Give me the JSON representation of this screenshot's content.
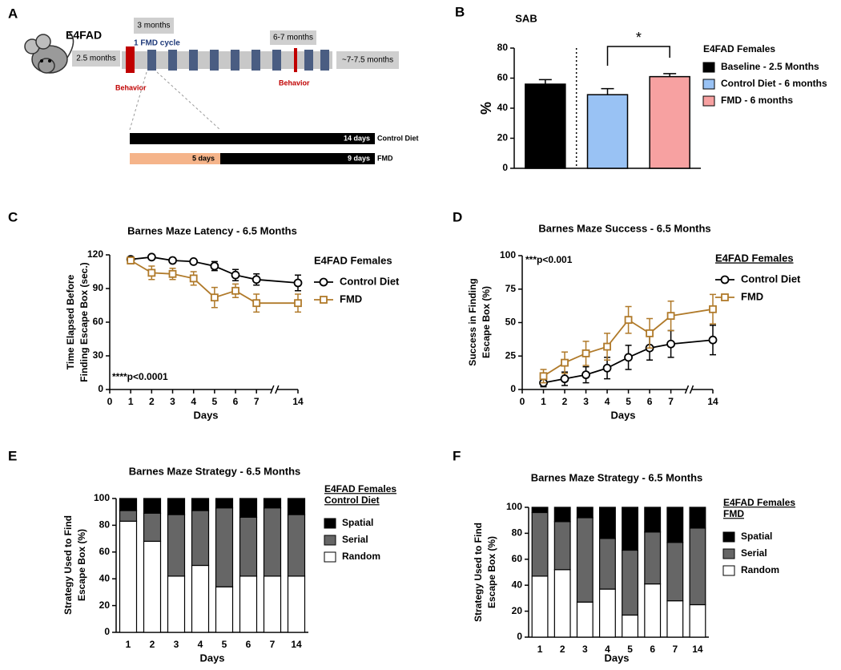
{
  "diagram": {
    "panel": "A",
    "mouse": "E4FAD",
    "start": "2.5 months",
    "interval": "3 months",
    "cycle": "1 FMD cycle",
    "later": "6-7 months",
    "end": "~7-7.5 months",
    "behavior": [
      "Behavior",
      "Behavior"
    ],
    "control_days": "14 days",
    "control_name": "Control Diet",
    "fast_days": "5 days",
    "refeed_days": "9 days",
    "fmd_name": "FMD"
  },
  "chart_data": [
    {
      "panel": "B",
      "type": "bar",
      "title": "SAB",
      "ylabel": [
        "%"
      ],
      "categories": [
        null
      ],
      "series": [
        {
          "name": "Baseline - 2.5 Months",
          "color": "#000000",
          "values": [
            56
          ],
          "errors": [
            3
          ]
        },
        {
          "name": "Control Diet - 6 months",
          "color": "#99c2f4",
          "values": [
            49
          ],
          "errors": [
            4
          ]
        },
        {
          "name": "FMD - 6 months",
          "color": "#f7a1a1",
          "values": [
            61
          ],
          "errors": [
            2
          ]
        }
      ],
      "ylim": [
        0,
        80
      ],
      "yticks": [
        0,
        20,
        40,
        60,
        80
      ],
      "legend_title": [
        "E4FAD Females"
      ],
      "annotation": "*"
    },
    {
      "panel": "C",
      "type": "line",
      "title": "Barnes Maze Latency - 6.5 Months",
      "xlabel": "Days",
      "ylabel": [
        "Time Elapsed Before",
        "Finding Escape Box (sec.)"
      ],
      "x": [
        1,
        2,
        3,
        4,
        5,
        6,
        7,
        14
      ],
      "series": [
        {
          "name": "Control Diet",
          "color": "#000000",
          "marker": "circle",
          "values": [
            116,
            118,
            115,
            114,
            110,
            102,
            98,
            95
          ],
          "errors": [
            2,
            1,
            2,
            2,
            4,
            5,
            5,
            7
          ]
        },
        {
          "name": "FMD",
          "color": "#b07a2a",
          "marker": "square",
          "values": [
            115,
            104,
            103,
            99,
            82,
            88,
            77,
            77
          ],
          "errors": [
            3,
            6,
            5,
            6,
            9,
            6,
            8,
            8
          ]
        }
      ],
      "xlim": [
        0,
        14
      ],
      "xticks": [
        0,
        1,
        2,
        3,
        4,
        5,
        6,
        7,
        14
      ],
      "xbreak": [
        7.75,
        13
      ],
      "ylim": [
        0,
        120
      ],
      "yticks": [
        0,
        30,
        60,
        90,
        120
      ],
      "legend_title": [
        "E4FAD Females"
      ],
      "annotation": "****p<0.0001"
    },
    {
      "panel": "D",
      "type": "line",
      "title": "Barnes Maze Success - 6.5 Months",
      "xlabel": "Days",
      "ylabel": [
        "Success in Finding",
        "Escape Box (%)"
      ],
      "x": [
        1,
        2,
        3,
        4,
        5,
        6,
        7,
        14
      ],
      "series": [
        {
          "name": "Control Diet",
          "color": "#000000",
          "marker": "circle",
          "values": [
            5,
            8,
            11,
            16,
            24,
            31,
            34,
            37
          ],
          "errors": [
            3,
            5,
            6,
            8,
            9,
            9,
            10,
            11
          ]
        },
        {
          "name": "FMD",
          "color": "#b07a2a",
          "marker": "square",
          "values": [
            10,
            20,
            27,
            32,
            52,
            42,
            55,
            60
          ],
          "errors": [
            5,
            8,
            9,
            10,
            10,
            11,
            11,
            11
          ]
        }
      ],
      "xlim": [
        0,
        14
      ],
      "xticks": [
        0,
        1,
        2,
        3,
        4,
        5,
        6,
        7,
        14
      ],
      "xbreak": [
        7.75,
        13
      ],
      "ylim": [
        0,
        100
      ],
      "yticks": [
        0,
        25,
        50,
        75,
        100
      ],
      "legend_title": [
        "E4FAD Females"
      ],
      "annotation": "***p<0.001"
    },
    {
      "panel": "E",
      "type": "stacked_bar",
      "title": "Barnes Maze Strategy - 6.5 Months",
      "xlabel": "Days",
      "ylabel": [
        "Strategy Used to Find",
        "Escape Box (%)"
      ],
      "categories": [
        "1",
        "2",
        "3",
        "4",
        "5",
        "6",
        "7",
        "14"
      ],
      "series": [
        {
          "name": "Random",
          "color": "#ffffff",
          "values": [
            83,
            68,
            42,
            50,
            34,
            42,
            42,
            42
          ]
        },
        {
          "name": "Serial",
          "color": "#666666",
          "values": [
            8,
            21,
            46,
            41,
            59,
            44,
            51,
            46
          ]
        },
        {
          "name": "Spatial",
          "color": "#000000",
          "values": [
            9,
            11,
            12,
            9,
            7,
            14,
            7,
            12
          ]
        }
      ],
      "ylim": [
        0,
        100
      ],
      "yticks": [
        0,
        20,
        40,
        60,
        80,
        100
      ],
      "legend_title": [
        "E4FAD Females",
        "Control Diet"
      ]
    },
    {
      "panel": "F",
      "type": "stacked_bar",
      "title": "Barnes Maze Strategy - 6.5 Months",
      "xlabel": "Days",
      "ylabel": [
        "Strategy Used to Find",
        "Escape Box (%)"
      ],
      "categories": [
        "1",
        "2",
        "3",
        "4",
        "5",
        "6",
        "7",
        "14"
      ],
      "series": [
        {
          "name": "Random",
          "color": "#ffffff",
          "values": [
            47,
            52,
            27,
            37,
            17,
            41,
            28,
            25
          ]
        },
        {
          "name": "Serial",
          "color": "#666666",
          "values": [
            49,
            37,
            65,
            39,
            50,
            40,
            45,
            59
          ]
        },
        {
          "name": "Spatial",
          "color": "#000000",
          "values": [
            4,
            11,
            8,
            24,
            33,
            19,
            27,
            16
          ]
        }
      ],
      "ylim": [
        0,
        100
      ],
      "yticks": [
        0,
        20,
        40,
        60,
        80,
        100
      ],
      "legend_title": [
        "E4FAD Females",
        "FMD"
      ]
    }
  ]
}
